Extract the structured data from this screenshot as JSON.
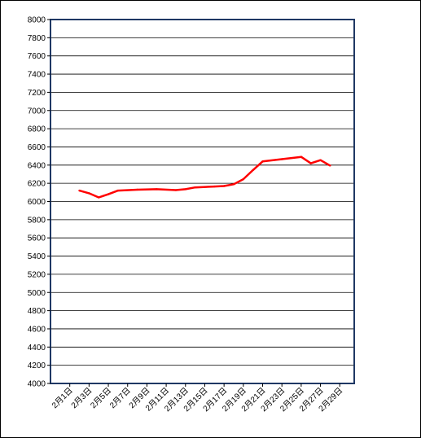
{
  "chart_data": {
    "type": "line",
    "title": "",
    "xlabel": "",
    "ylabel": "",
    "ylim": [
      4000,
      8000
    ],
    "y_ticks": [
      "4000",
      "4200",
      "4400",
      "4600",
      "4800",
      "5000",
      "5200",
      "5400",
      "5600",
      "5800",
      "6000",
      "6200",
      "6400",
      "6600",
      "6800",
      "7000",
      "7200",
      "7400",
      "7600",
      "7800",
      "8000"
    ],
    "x_tick_labels": [
      "2月1日",
      "2月3日",
      "2月5日",
      "2月7日",
      "2月9日",
      "2月11日",
      "2月13日",
      "2月15日",
      "2月17日",
      "2月19日",
      "2月21日",
      "2月23日",
      "2月25日",
      "2月27日",
      "2月29日"
    ],
    "x_tick_days": [
      1,
      3,
      5,
      7,
      9,
      11,
      13,
      15,
      17,
      19,
      21,
      23,
      25,
      27,
      29
    ],
    "xlim_days": [
      -1,
      30.5
    ],
    "grid": true,
    "legend": "none",
    "series": [
      {
        "color": "#ff0000",
        "points": [
          {
            "day": 2,
            "value": 6120
          },
          {
            "day": 3,
            "value": 6090
          },
          {
            "day": 4,
            "value": 6045
          },
          {
            "day": 5,
            "value": 6080
          },
          {
            "day": 6,
            "value": 6120
          },
          {
            "day": 8,
            "value": 6130
          },
          {
            "day": 10,
            "value": 6135
          },
          {
            "day": 12,
            "value": 6125
          },
          {
            "day": 13,
            "value": 6135
          },
          {
            "day": 14,
            "value": 6155
          },
          {
            "day": 16,
            "value": 6165
          },
          {
            "day": 17,
            "value": 6170
          },
          {
            "day": 18,
            "value": 6190
          },
          {
            "day": 19,
            "value": 6245
          },
          {
            "day": 20,
            "value": 6345
          },
          {
            "day": 21,
            "value": 6440
          },
          {
            "day": 23,
            "value": 6465
          },
          {
            "day": 25,
            "value": 6490
          },
          {
            "day": 26,
            "value": 6420
          },
          {
            "day": 27,
            "value": 6455
          },
          {
            "day": 28,
            "value": 6395
          }
        ]
      }
    ]
  },
  "colors": {
    "plot_border": "#1f3864",
    "grid": "#000000",
    "frame": "#000000",
    "line": "#ff0000"
  }
}
